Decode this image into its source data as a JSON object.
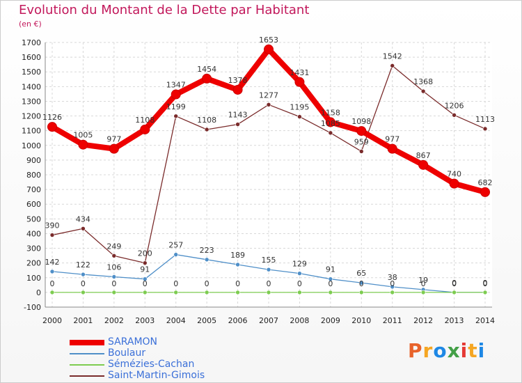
{
  "title": "Evolution du Montant de la Dette par Habitant",
  "unit": "(en €)",
  "brand": {
    "text": "Proxiti",
    "colors": [
      "#e8632b",
      "#f5a623",
      "#1e88e5",
      "#43a047",
      "#e53935",
      "#f5a623",
      "#1e88e5"
    ]
  },
  "chart_data": {
    "type": "line",
    "x": [
      "2000",
      "2001",
      "2002",
      "2003",
      "2004",
      "2005",
      "2006",
      "2007",
      "2008",
      "2009",
      "2010",
      "2011",
      "2012",
      "2013",
      "2014"
    ],
    "ylim": [
      -100,
      1700
    ],
    "yticks": [
      -100,
      0,
      100,
      200,
      300,
      400,
      500,
      600,
      700,
      800,
      900,
      1000,
      1100,
      1200,
      1300,
      1400,
      1500,
      1600,
      1700
    ],
    "grid": true,
    "legend_position": "bottom-left",
    "series": [
      {
        "name": "SARAMON",
        "color": "#ee0000",
        "values": [
          1126,
          1005,
          977,
          1108,
          1347,
          1454,
          1378,
          1653,
          1431,
          1158,
          1098,
          977,
          867,
          740,
          682
        ],
        "labels": [
          "1126",
          "1005",
          "977",
          "1108",
          "1347",
          "1454",
          "1378",
          "1653",
          "1431",
          "1158",
          "1098",
          "977",
          "867",
          "740",
          "682"
        ]
      },
      {
        "name": "Boulaur",
        "color": "#4f8fc8",
        "values": [
          142,
          122,
          106,
          91,
          257,
          223,
          189,
          155,
          129,
          91,
          65,
          38,
          19,
          0,
          0
        ],
        "labels": [
          "142",
          "122",
          "106",
          "91",
          "257",
          "223",
          "189",
          "155",
          "129",
          "91",
          "65",
          "38",
          "19",
          "0",
          "0"
        ]
      },
      {
        "name": "Sémézies-Cachan",
        "color": "#7dcc50",
        "values": [
          0,
          0,
          0,
          0,
          0,
          0,
          0,
          0,
          0,
          0,
          0,
          0,
          0,
          0,
          0
        ],
        "labels": [
          "0",
          "0",
          "0",
          "0",
          "0",
          "0",
          "0",
          "0",
          "0",
          "0",
          "0",
          "0",
          "0",
          "0",
          "0"
        ]
      },
      {
        "name": "Saint-Martin-Gimois",
        "color": "#7a2b2b",
        "values": [
          390,
          434,
          249,
          200,
          1199,
          1108,
          1143,
          1277,
          1195,
          1085,
          959,
          1542,
          1368,
          1206,
          1113
        ],
        "labels": [
          "390",
          "434",
          "249",
          "200",
          "1199",
          "1108",
          "1143",
          "1277",
          "1195",
          "1085",
          "959",
          "1542",
          "1368",
          "1206",
          "1113"
        ]
      }
    ]
  }
}
